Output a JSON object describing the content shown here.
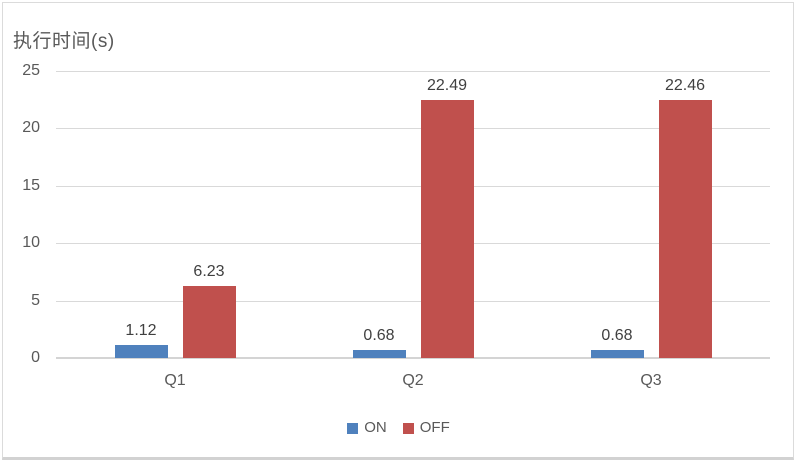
{
  "chart": {
    "title": "执行时间(s)"
  },
  "chart_data": {
    "type": "bar",
    "title": "执行时间(s)",
    "ylabel": "执行时间(s)",
    "xlabel": "",
    "categories": [
      "Q1",
      "Q2",
      "Q3"
    ],
    "series": [
      {
        "name": "ON",
        "color": "#4F81BD",
        "values": [
          1.12,
          0.68,
          0.68
        ]
      },
      {
        "name": "OFF",
        "color": "#C0504D",
        "values": [
          6.23,
          22.49,
          22.46
        ]
      }
    ],
    "data_labels": [
      "1.12",
      "6.23",
      "0.68",
      "22.49",
      "0.68",
      "22.46"
    ],
    "ylim": [
      0,
      25
    ],
    "yticks": [
      0,
      5,
      10,
      15,
      20,
      25
    ],
    "grid": true,
    "legend_position": "bottom"
  },
  "colors": {
    "grid": "#D9D9D9",
    "axis": "#D4D4D4",
    "tick_text": "#595959",
    "data_label_text": "#404040",
    "frame_border": "#DBDBDB"
  }
}
